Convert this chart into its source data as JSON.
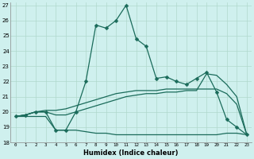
{
  "xlabel": "Humidex (Indice chaleur)",
  "xlim": [
    -0.5,
    23.5
  ],
  "ylim": [
    18,
    27.2
  ],
  "yticks": [
    18,
    19,
    20,
    21,
    22,
    23,
    24,
    25,
    26,
    27
  ],
  "xticks": [
    0,
    1,
    2,
    3,
    4,
    5,
    6,
    7,
    8,
    9,
    10,
    11,
    12,
    13,
    14,
    15,
    16,
    17,
    18,
    19,
    20,
    21,
    22,
    23
  ],
  "bg_color": "#cff0ee",
  "grid_color": "#b0d8cc",
  "line_color": "#1a6b5a",
  "series": [
    {
      "x": [
        0,
        1,
        2,
        3,
        4,
        5,
        6,
        7,
        8,
        9,
        10,
        11,
        12,
        13,
        14,
        15,
        16,
        17,
        18,
        19,
        20,
        21,
        22,
        23
      ],
      "y": [
        19.7,
        19.8,
        20.0,
        20.0,
        18.8,
        18.8,
        20.0,
        22.0,
        25.7,
        25.5,
        26.0,
        27.0,
        24.8,
        24.3,
        22.2,
        22.3,
        22.0,
        21.8,
        22.2,
        22.6,
        21.3,
        19.5,
        19.0,
        18.5
      ],
      "marker": true,
      "markersize": 2.5,
      "linewidth": 0.9
    },
    {
      "x": [
        0,
        1,
        2,
        3,
        4,
        5,
        6,
        7,
        8,
        9,
        10,
        11,
        12,
        13,
        14,
        15,
        16,
        17,
        18,
        19,
        20,
        21,
        22,
        23
      ],
      "y": [
        19.7,
        19.8,
        20.0,
        20.1,
        20.1,
        20.2,
        20.4,
        20.6,
        20.8,
        21.0,
        21.2,
        21.3,
        21.4,
        21.4,
        21.4,
        21.5,
        21.5,
        21.5,
        21.5,
        21.5,
        21.5,
        21.2,
        20.5,
        18.5
      ],
      "marker": false,
      "markersize": 0,
      "linewidth": 0.9
    },
    {
      "x": [
        0,
        1,
        2,
        3,
        4,
        5,
        6,
        7,
        8,
        9,
        10,
        11,
        12,
        13,
        14,
        15,
        16,
        17,
        18,
        19,
        20,
        21,
        22,
        23
      ],
      "y": [
        19.7,
        19.8,
        20.0,
        20.0,
        19.8,
        19.8,
        20.0,
        20.2,
        20.4,
        20.6,
        20.8,
        21.0,
        21.1,
        21.2,
        21.2,
        21.3,
        21.3,
        21.4,
        21.4,
        22.5,
        22.4,
        21.8,
        21.0,
        18.5
      ],
      "marker": false,
      "markersize": 0,
      "linewidth": 0.9
    },
    {
      "x": [
        0,
        1,
        2,
        3,
        4,
        5,
        6,
        7,
        8,
        9,
        10,
        11,
        12,
        13,
        14,
        15,
        16,
        17,
        18,
        19,
        20,
        21,
        22,
        23
      ],
      "y": [
        19.7,
        19.7,
        19.7,
        19.7,
        18.8,
        18.8,
        18.8,
        18.7,
        18.6,
        18.6,
        18.5,
        18.5,
        18.5,
        18.5,
        18.5,
        18.5,
        18.5,
        18.5,
        18.5,
        18.5,
        18.5,
        18.6,
        18.6,
        18.5
      ],
      "marker": false,
      "markersize": 0,
      "linewidth": 0.9
    }
  ]
}
